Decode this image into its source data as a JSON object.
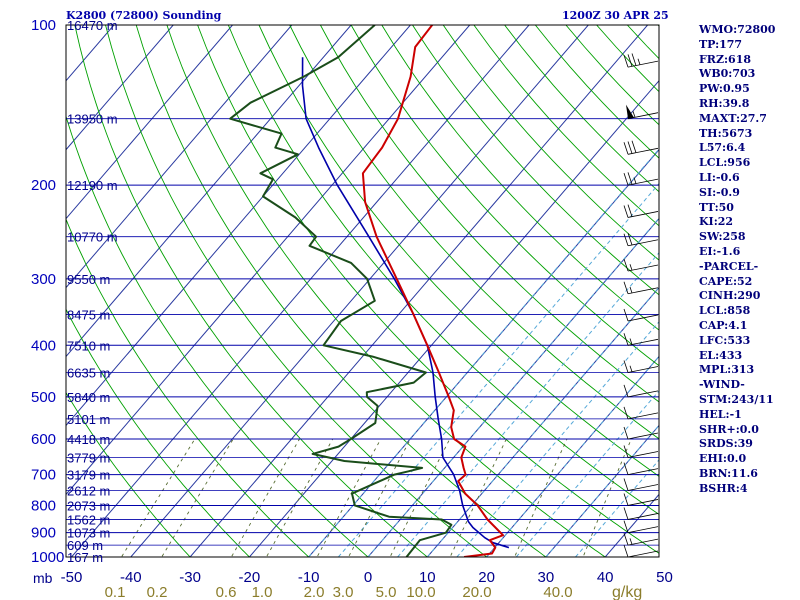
{
  "header": {
    "station": "K2800 (72800) Sounding",
    "time": "1200Z 30 APR 25"
  },
  "indices": [
    "WMO:72800",
    "TP:177",
    "FRZ:618",
    "WB0:703",
    "PW:0.95",
    "RH:39.8",
    "MAXT:27.7",
    "TH:5673",
    "L57:6.4",
    "LCL:956",
    "LI:-0.6",
    "SI:-0.9",
    "TT:50",
    "KI:22",
    "SW:258",
    "EI:-1.6",
    "-PARCEL-",
    "CAPE:52",
    "CINH:290",
    "LCL:858",
    "CAP:4.1",
    "LFC:533",
    "EL:433",
    "MPL:313",
    "-WIND-",
    "STM:243/11",
    "HEL:-1",
    "SHR+:0.0",
    "SRDS:39",
    "EHI:0.0",
    "BRN:11.6",
    "BSHR:4"
  ],
  "labels": {
    "pressure_unit": "mb",
    "mixing_ratio_unit": "g/kg"
  },
  "colors": {
    "temperature": "#cc0000",
    "dewpoint": "#1a4d1a",
    "parcel": "#0000aa",
    "isobar": "#0000aa",
    "isotherm": "#2a3aa0",
    "dry_adiabat": "#00a000",
    "moist_adiabat": "#55a8d8",
    "mixing_ratio": "#556b2f",
    "wind_barb": "#000000"
  },
  "chart_data": {
    "type": "line",
    "title": "K2800 (72800) Sounding",
    "subtitle": "1200Z 30 APR 25",
    "diagram": "skew-T log-P",
    "pressure_range": [
      1000,
      100
    ],
    "pressure_ticks": [
      100,
      200,
      300,
      400,
      500,
      600,
      700,
      800,
      900,
      1000
    ],
    "temperature_ticks": [
      -50,
      -40,
      -30,
      -20,
      -10,
      0,
      10,
      20,
      30,
      40,
      50
    ],
    "mixing_ratio_ticks": [
      "0.1",
      "0.2",
      "0.6",
      "1.0",
      "2.0",
      "3.0",
      "5.0",
      "10.0",
      "20.0",
      "40.0"
    ],
    "height_labels": [
      {
        "p": 100,
        "h": "16470 m"
      },
      {
        "p": 150,
        "h": "13950 m"
      },
      {
        "p": 200,
        "h": "12190 m"
      },
      {
        "p": 250,
        "h": "10770 m"
      },
      {
        "p": 300,
        "h": "9550 m"
      },
      {
        "p": 350,
        "h": "8475 m"
      },
      {
        "p": 400,
        "h": "7510 m"
      },
      {
        "p": 450,
        "h": "6635 m"
      },
      {
        "p": 500,
        "h": "5840 m"
      },
      {
        "p": 550,
        "h": "5101 m"
      },
      {
        "p": 600,
        "h": "4418 m"
      },
      {
        "p": 650,
        "h": "3779 m"
      },
      {
        "p": 700,
        "h": "3179 m"
      },
      {
        "p": 750,
        "h": "2612 m"
      },
      {
        "p": 800,
        "h": "2073 m"
      },
      {
        "p": 850,
        "h": "1562 m"
      },
      {
        "p": 900,
        "h": "1073 m"
      },
      {
        "p": 950,
        "h": "609 m"
      },
      {
        "p": 1000,
        "h": "167 m"
      }
    ],
    "series": [
      {
        "name": "temperature",
        "points": [
          [
            1000,
            16.2
          ],
          [
            985,
            20.4
          ],
          [
            960,
            20.1
          ],
          [
            930,
            18.1
          ],
          [
            910,
            19.6
          ],
          [
            880,
            17.2
          ],
          [
            850,
            14.7
          ],
          [
            800,
            11.0
          ],
          [
            760,
            7.2
          ],
          [
            720,
            4.2
          ],
          [
            700,
            4.5
          ],
          [
            680,
            3.2
          ],
          [
            650,
            1.3
          ],
          [
            620,
            0.4
          ],
          [
            600,
            -2.6
          ],
          [
            570,
            -4.8
          ],
          [
            530,
            -6.8
          ],
          [
            500,
            -9.6
          ],
          [
            450,
            -14.8
          ],
          [
            400,
            -20.7
          ],
          [
            350,
            -27.5
          ],
          [
            300,
            -35.5
          ],
          [
            250,
            -45.0
          ],
          [
            215,
            -52.0
          ],
          [
            190,
            -56.5
          ],
          [
            170,
            -57.0
          ],
          [
            150,
            -58.5
          ],
          [
            125,
            -62.5
          ],
          [
            110,
            -66.0
          ],
          [
            95,
            -66.5
          ]
        ]
      },
      {
        "name": "dewpoint",
        "points": [
          [
            1000,
            6.5
          ],
          [
            930,
            6.3
          ],
          [
            900,
            9.6
          ],
          [
            870,
            9.4
          ],
          [
            850,
            7.0
          ],
          [
            840,
            -2.3
          ],
          [
            800,
            -9.7
          ],
          [
            760,
            -11.9
          ],
          [
            700,
            -7.5
          ],
          [
            690,
            -5.6
          ],
          [
            680,
            -3.8
          ],
          [
            660,
            -17.9
          ],
          [
            640,
            -24.3
          ],
          [
            620,
            -21.0
          ],
          [
            600,
            -20.0
          ],
          [
            560,
            -18.2
          ],
          [
            520,
            -20.3
          ],
          [
            500,
            -23.4
          ],
          [
            490,
            -24.1
          ],
          [
            470,
            -17.6
          ],
          [
            450,
            -17.0
          ],
          [
            420,
            -28.3
          ],
          [
            400,
            -38.2
          ],
          [
            360,
            -38.8
          ],
          [
            330,
            -36.0
          ],
          [
            300,
            -40.5
          ],
          [
            280,
            -45.5
          ],
          [
            260,
            -55.0
          ],
          [
            250,
            -55.2
          ],
          [
            230,
            -61.5
          ],
          [
            210,
            -70.0
          ],
          [
            195,
            -70.8
          ],
          [
            190,
            -73.8
          ],
          [
            175,
            -70.2
          ],
          [
            170,
            -75.0
          ],
          [
            160,
            -76.0
          ],
          [
            150,
            -86.8
          ],
          [
            140,
            -85.7
          ],
          [
            125,
            -80.5
          ],
          [
            115,
            -77.5
          ],
          [
            100,
            -76.0
          ]
        ]
      },
      {
        "name": "parcel",
        "points": [
          [
            960,
            22.4
          ],
          [
            940,
            19.0
          ],
          [
            920,
            16.9
          ],
          [
            880,
            13.4
          ],
          [
            858,
            11.8
          ],
          [
            800,
            8.5
          ],
          [
            750,
            5.8
          ],
          [
            700,
            2.5
          ],
          [
            650,
            -1.8
          ],
          [
            600,
            -4.7
          ],
          [
            550,
            -8.2
          ],
          [
            500,
            -11.9
          ],
          [
            450,
            -15.8
          ],
          [
            400,
            -20.7
          ],
          [
            350,
            -27.5
          ],
          [
            300,
            -35.9
          ],
          [
            250,
            -46.3
          ],
          [
            200,
            -59.1
          ],
          [
            170,
            -67.7
          ],
          [
            150,
            -74.0
          ],
          [
            130,
            -79.4
          ],
          [
            115,
            -83.5
          ]
        ]
      }
    ],
    "wind_profile": [
      {
        "p": 100,
        "kt": 25
      },
      {
        "p": 120,
        "kt": 35
      },
      {
        "p": 150,
        "kt": 55
      },
      {
        "p": 175,
        "kt": 30
      },
      {
        "p": 200,
        "kt": 25
      },
      {
        "p": 230,
        "kt": 20
      },
      {
        "p": 260,
        "kt": 20
      },
      {
        "p": 290,
        "kt": 15
      },
      {
        "p": 320,
        "kt": 15
      },
      {
        "p": 360,
        "kt": 10
      },
      {
        "p": 400,
        "kt": 15
      },
      {
        "p": 450,
        "kt": 15
      },
      {
        "p": 500,
        "kt": 10
      },
      {
        "p": 550,
        "kt": 10
      },
      {
        "p": 600,
        "kt": 10
      },
      {
        "p": 650,
        "kt": 10
      },
      {
        "p": 700,
        "kt": 10
      },
      {
        "p": 750,
        "kt": 10
      },
      {
        "p": 800,
        "kt": 10
      },
      {
        "p": 850,
        "kt": 10
      },
      {
        "p": 900,
        "kt": 10
      },
      {
        "p": 950,
        "kt": 15
      },
      {
        "p": 1000,
        "kt": 10
      }
    ]
  }
}
